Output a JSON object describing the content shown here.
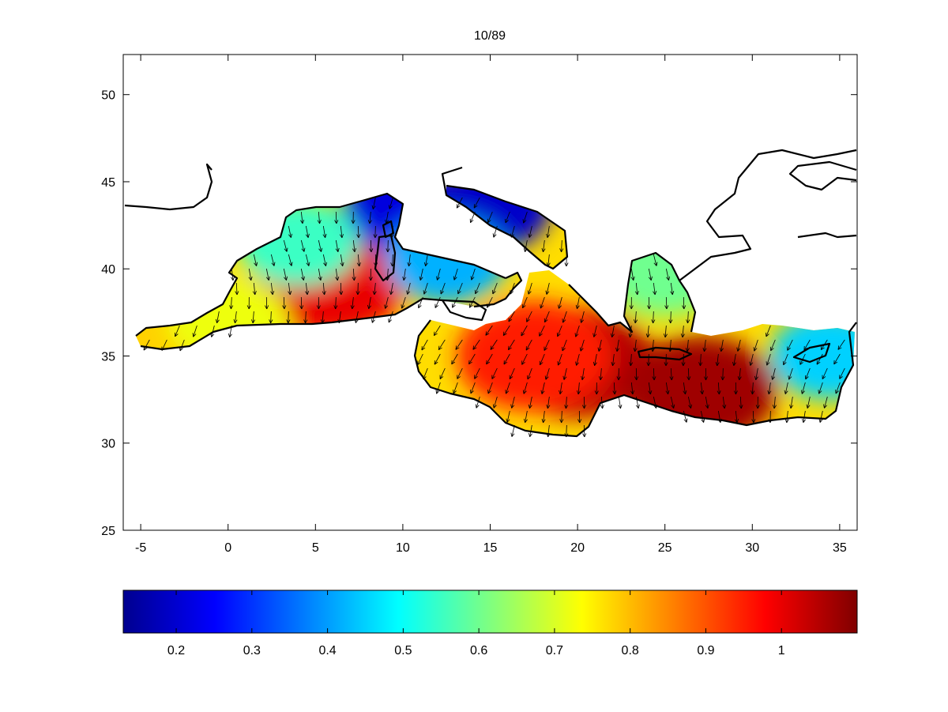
{
  "chart_data": {
    "type": "heatmap",
    "title": "10/89",
    "xlim": [
      -6,
      36
    ],
    "ylim": [
      25,
      52.3
    ],
    "x_ticks": [
      -5,
      0,
      5,
      10,
      15,
      20,
      25,
      30,
      35
    ],
    "y_ticks": [
      25,
      30,
      35,
      40,
      45,
      50
    ],
    "colorbar": {
      "colormap": "jet",
      "range": [
        0.13,
        1.1
      ],
      "ticks": [
        0.2,
        0.3,
        0.4,
        0.5,
        0.6,
        0.7,
        0.8,
        0.9,
        1
      ]
    },
    "field_centers": [
      {
        "lon": 5.8,
        "lat": 39.3,
        "value": 1.0
      },
      {
        "lon": 20.0,
        "lat": 34.6,
        "value": 1.05
      },
      {
        "lon": 27.0,
        "lat": 33.0,
        "value": 1.07
      },
      {
        "lon": 17.5,
        "lat": 35.0,
        "value": 0.95
      },
      {
        "lon": 10.0,
        "lat": 43.4,
        "value": 0.22
      },
      {
        "lon": 15.0,
        "lat": 43.5,
        "value": 0.2
      },
      {
        "lon": 12.5,
        "lat": 40.5,
        "value": 0.42
      },
      {
        "lon": 4.0,
        "lat": 41.5,
        "value": 0.55
      },
      {
        "lon": -4.5,
        "lat": 36.0,
        "value": 0.78
      },
      {
        "lon": 0.0,
        "lat": 37.0,
        "value": 0.72
      },
      {
        "lon": 34.5,
        "lat": 35.0,
        "value": 0.45
      },
      {
        "lon": 25.0,
        "lat": 39.8,
        "value": 0.6
      }
    ],
    "vector_field": {
      "description": "wind/current arrows pointing predominantly south-southeast"
    }
  }
}
